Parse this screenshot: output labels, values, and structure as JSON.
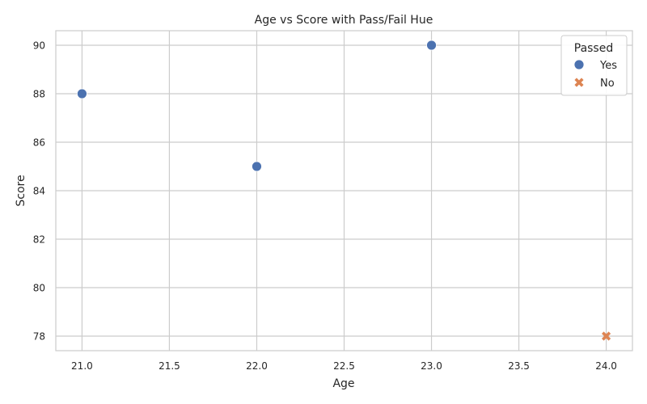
{
  "chart_data": {
    "type": "scatter",
    "title": "Age vs Score with Pass/Fail Hue",
    "xlabel": "Age",
    "ylabel": "Score",
    "xlim": [
      20.85,
      24.15
    ],
    "ylim": [
      77.4,
      90.6
    ],
    "xticks": [
      "21.0",
      "21.5",
      "22.0",
      "22.5",
      "23.0",
      "23.5",
      "24.0"
    ],
    "yticks": [
      "78",
      "80",
      "82",
      "84",
      "86",
      "88",
      "90"
    ],
    "grid": true,
    "legend": {
      "title": "Passed",
      "placement": "top-right",
      "entries": [
        {
          "label": "Yes",
          "marker": "circle",
          "color": "#4c72b0"
        },
        {
          "label": "No",
          "marker": "x",
          "color": "#dd8452"
        }
      ]
    },
    "series": [
      {
        "name": "Yes",
        "marker": "circle",
        "color": "#4c72b0",
        "points": [
          {
            "x": 21,
            "y": 88
          },
          {
            "x": 22,
            "y": 85
          },
          {
            "x": 23,
            "y": 90
          }
        ]
      },
      {
        "name": "No",
        "marker": "x",
        "color": "#dd8452",
        "points": [
          {
            "x": 24,
            "y": 78
          }
        ]
      }
    ]
  }
}
